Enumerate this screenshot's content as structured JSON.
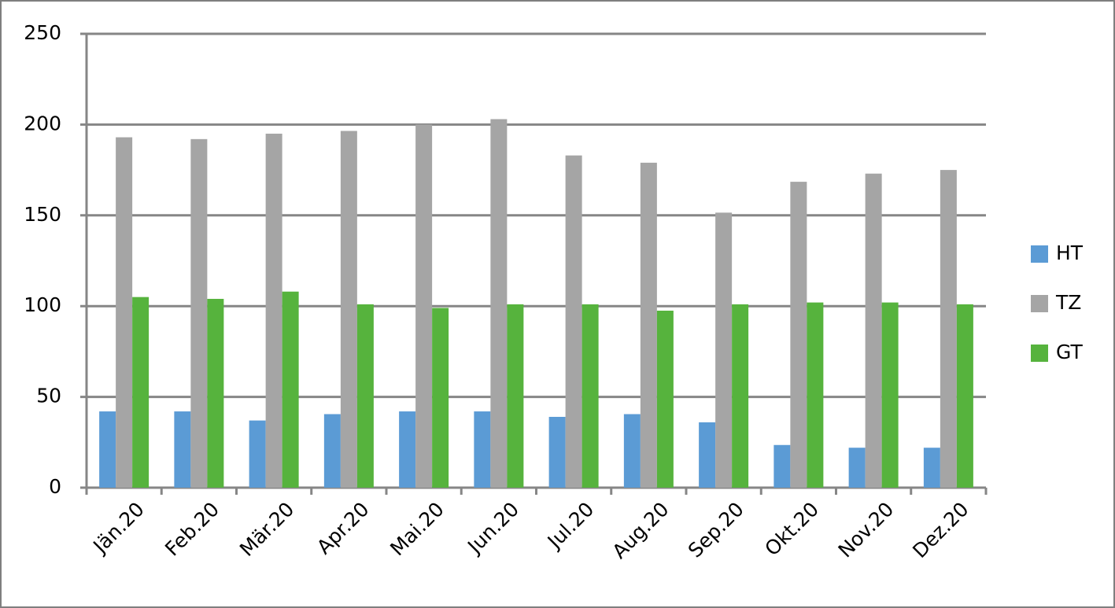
{
  "chart_data": {
    "type": "bar",
    "categories": [
      "Jän.20",
      "Feb.20",
      "Mär.20",
      "Apr.20",
      "Mai.20",
      "Jun.20",
      "Jul.20",
      "Aug.20",
      "Sep.20",
      "Okt.20",
      "Nov.20",
      "Dez.20"
    ],
    "series": [
      {
        "name": "HT",
        "color": "#5b9bd5",
        "values": [
          42,
          42,
          37,
          40.5,
          42,
          42,
          39,
          40.5,
          36,
          23.5,
          22,
          22
        ]
      },
      {
        "name": "TZ",
        "color": "#a5a5a5",
        "values": [
          193,
          192,
          195,
          196.5,
          200,
          203,
          183,
          179,
          151.5,
          168.5,
          173,
          175
        ]
      },
      {
        "name": "GT",
        "color": "#56b33d",
        "values": [
          105,
          104,
          108,
          101,
          99,
          101,
          101,
          97.5,
          101,
          102,
          102,
          101
        ]
      }
    ],
    "ylim": [
      0,
      250
    ],
    "yticks": [
      0,
      50,
      100,
      150,
      200,
      250
    ],
    "grid": true,
    "legend": "right"
  }
}
